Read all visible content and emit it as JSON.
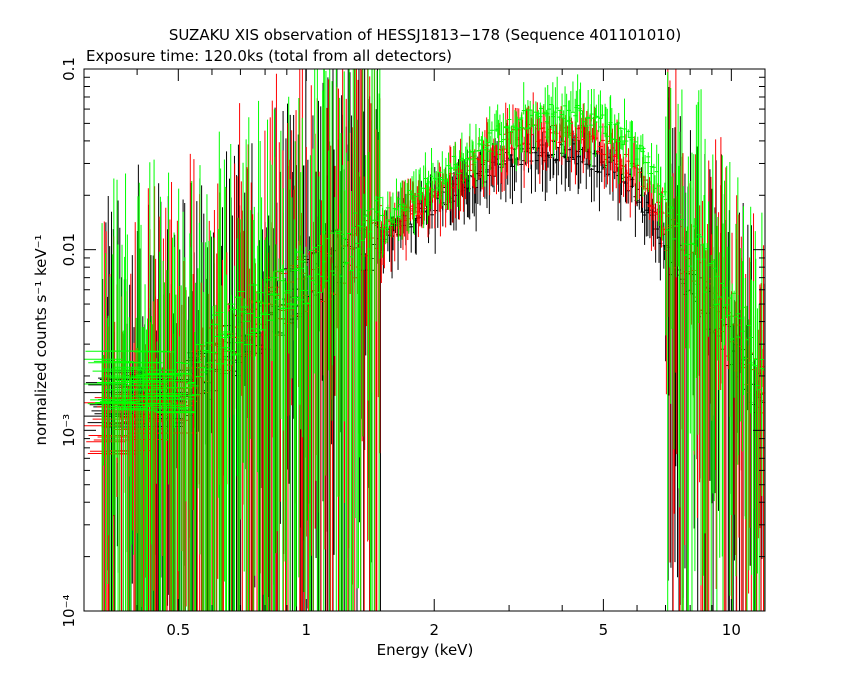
{
  "chart_data": {
    "type": "scatter",
    "title": "SUZAKU XIS observation of HESSJ1813−178 (Sequence 401101010)",
    "subtitle": "Exposure time: 120.0ks (total from all detectors)",
    "xlabel": "Energy (keV)",
    "ylabel": "normalized counts s⁻¹ keV⁻¹",
    "xscale": "log",
    "yscale": "log",
    "xlim": [
      0.3,
      12
    ],
    "ylim": [
      0.0001,
      0.1
    ],
    "grid": false,
    "xticks": [
      {
        "value": 0.5,
        "label": "0.5"
      },
      {
        "value": 1,
        "label": "1"
      },
      {
        "value": 2,
        "label": "2"
      },
      {
        "value": 5,
        "label": "5"
      },
      {
        "value": 10,
        "label": "10"
      }
    ],
    "yticks": [
      {
        "value": 0.1,
        "label": "0.1"
      },
      {
        "value": 0.01,
        "label": "0.01"
      },
      {
        "value": 0.001,
        "label": "10⁻³"
      },
      {
        "value": 0.0001,
        "label": "10⁻⁴"
      }
    ],
    "series": [
      {
        "color": "#000000",
        "points": [
          {
            "x": 0.33,
            "y": 0.0014
          },
          {
            "x": 0.5,
            "y": 0.0016
          },
          {
            "x": 0.6,
            "y": 0.0022
          },
          {
            "x": 0.7,
            "y": 0.003
          },
          {
            "x": 0.8,
            "y": 0.004
          },
          {
            "x": 0.9,
            "y": 0.0055
          },
          {
            "x": 1.0,
            "y": 0.007
          },
          {
            "x": 1.2,
            "y": 0.009
          },
          {
            "x": 1.5,
            "y": 0.012
          },
          {
            "x": 2.0,
            "y": 0.018
          },
          {
            "x": 2.5,
            "y": 0.025
          },
          {
            "x": 3.0,
            "y": 0.032
          },
          {
            "x": 3.5,
            "y": 0.035
          },
          {
            "x": 4.0,
            "y": 0.035
          },
          {
            "x": 4.5,
            "y": 0.033
          },
          {
            "x": 5.0,
            "y": 0.03
          },
          {
            "x": 5.5,
            "y": 0.026
          },
          {
            "x": 6.0,
            "y": 0.021
          },
          {
            "x": 6.5,
            "y": 0.015
          },
          {
            "x": 7.0,
            "y": 0.011
          },
          {
            "x": 8.0,
            "y": 0.0065
          },
          {
            "x": 9.0,
            "y": 0.0045
          },
          {
            "x": 10.0,
            "y": 0.003
          },
          {
            "x": 11.0,
            "y": 0.002
          },
          {
            "x": 12.0,
            "y": 0.0015
          }
        ]
      },
      {
        "color": "#ff0000",
        "points": [
          {
            "x": 0.33,
            "y": 0.001
          },
          {
            "x": 0.5,
            "y": 0.0014
          },
          {
            "x": 0.6,
            "y": 0.0025
          },
          {
            "x": 0.7,
            "y": 0.0035
          },
          {
            "x": 0.8,
            "y": 0.0045
          },
          {
            "x": 0.9,
            "y": 0.0055
          },
          {
            "x": 1.0,
            "y": 0.0065
          },
          {
            "x": 1.2,
            "y": 0.0085
          },
          {
            "x": 1.5,
            "y": 0.012
          },
          {
            "x": 2.0,
            "y": 0.02
          },
          {
            "x": 2.5,
            "y": 0.03
          },
          {
            "x": 3.0,
            "y": 0.04
          },
          {
            "x": 3.5,
            "y": 0.045
          },
          {
            "x": 4.0,
            "y": 0.045
          },
          {
            "x": 4.5,
            "y": 0.042
          },
          {
            "x": 5.0,
            "y": 0.037
          },
          {
            "x": 5.5,
            "y": 0.032
          },
          {
            "x": 6.0,
            "y": 0.026
          },
          {
            "x": 6.5,
            "y": 0.019
          },
          {
            "x": 7.0,
            "y": 0.013
          },
          {
            "x": 8.0,
            "y": 0.008
          },
          {
            "x": 9.0,
            "y": 0.005
          },
          {
            "x": 10.0,
            "y": 0.0032
          },
          {
            "x": 11.0,
            "y": 0.0022
          },
          {
            "x": 12.0,
            "y": 0.0016
          }
        ]
      },
      {
        "color": "#00ff00",
        "points": [
          {
            "x": 0.33,
            "y": 0.0019
          },
          {
            "x": 0.5,
            "y": 0.0018
          },
          {
            "x": 0.6,
            "y": 0.0028
          },
          {
            "x": 0.7,
            "y": 0.004
          },
          {
            "x": 0.8,
            "y": 0.005
          },
          {
            "x": 0.9,
            "y": 0.0062
          },
          {
            "x": 1.0,
            "y": 0.0075
          },
          {
            "x": 1.2,
            "y": 0.01
          },
          {
            "x": 1.5,
            "y": 0.014
          },
          {
            "x": 2.0,
            "y": 0.024
          },
          {
            "x": 2.5,
            "y": 0.035
          },
          {
            "x": 3.0,
            "y": 0.048
          },
          {
            "x": 3.5,
            "y": 0.055
          },
          {
            "x": 4.0,
            "y": 0.057
          },
          {
            "x": 4.5,
            "y": 0.055
          },
          {
            "x": 5.0,
            "y": 0.05
          },
          {
            "x": 5.5,
            "y": 0.044
          },
          {
            "x": 6.0,
            "y": 0.036
          },
          {
            "x": 6.5,
            "y": 0.027
          },
          {
            "x": 7.0,
            "y": 0.019
          },
          {
            "x": 8.0,
            "y": 0.011
          },
          {
            "x": 9.0,
            "y": 0.007
          },
          {
            "x": 10.0,
            "y": 0.0045
          },
          {
            "x": 11.0,
            "y": 0.003
          },
          {
            "x": 12.0,
            "y": 0.002
          }
        ]
      }
    ]
  }
}
